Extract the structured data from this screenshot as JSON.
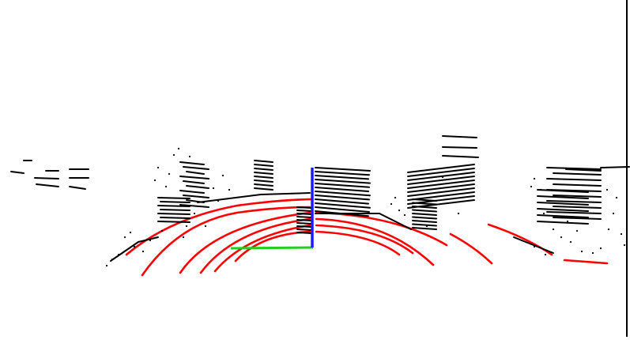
{
  "colors": {
    "background": "#ffffff",
    "obstacle_points": "#000000",
    "ground_points": "#ff0000",
    "axis_x": "#22cc22",
    "axis_z": "#1a1aff",
    "edge": "#000000"
  },
  "view": {
    "type": "lidar-point-cloud",
    "segmentation_classes": [
      "ground",
      "obstacle"
    ],
    "visible_axes": [
      "x-axis",
      "z-axis"
    ]
  }
}
